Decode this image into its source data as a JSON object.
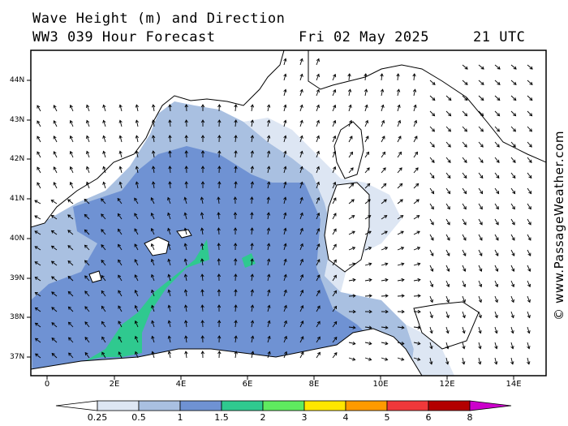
{
  "title": {
    "line1": "Wave Height (m) and Direction",
    "line2": "WW3 039 Hour Forecast",
    "date": "Fri 02 May 2025",
    "time": "21 UTC"
  },
  "credit": "© www.PassageWeather.com",
  "map": {
    "lat_labels": [
      "44N",
      "43N",
      "42N",
      "41N",
      "40N",
      "39N",
      "38N",
      "37N"
    ],
    "lon_labels": [
      "0",
      "2E",
      "4E",
      "6E",
      "8E",
      "10E",
      "12E",
      "14E"
    ],
    "colors": {
      "land": "#ffffff",
      "sea_lt025": "#ffffff",
      "c025": "#dde6f3",
      "c05": "#a9c0e1",
      "c1": "#6f92d3",
      "c15": "#2fc98f",
      "coast": "#000000",
      "arrow": "#000000"
    }
  },
  "colorbar": {
    "labels": [
      "0.25",
      "0.5",
      "1",
      "1.5",
      "2",
      "3",
      "4",
      "5",
      "6",
      "8"
    ],
    "colors": [
      "#ffffff",
      "#dde6f3",
      "#a9c0e1",
      "#6f92d3",
      "#2fc98f",
      "#5fea5f",
      "#ffe600",
      "#ff9a00",
      "#f0383a",
      "#b30000",
      "#cc00cc"
    ]
  }
}
